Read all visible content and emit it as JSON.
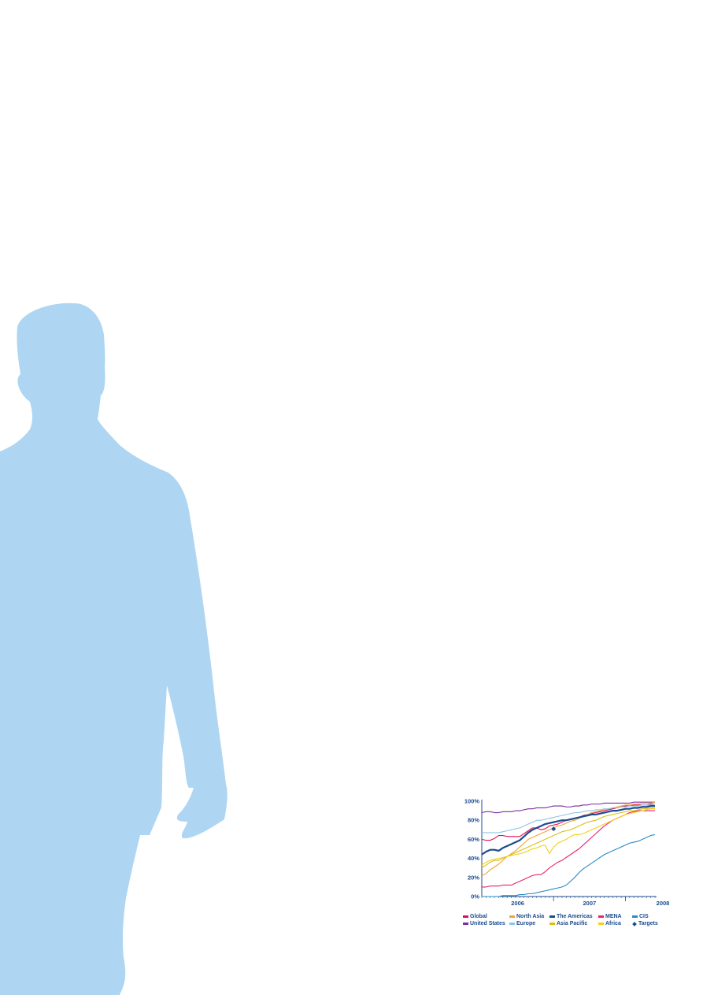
{
  "figure": {
    "silhouette_color": "#aed6f2"
  },
  "chart_data": {
    "type": "line",
    "yticks": [
      "0%",
      "20%",
      "40%",
      "60%",
      "80%",
      "100%"
    ],
    "xticks": [
      "2006",
      "2007",
      "2008"
    ],
    "ylim": [
      0,
      100
    ],
    "grid": false,
    "legend_position": "bottom",
    "x_points": 42,
    "series": [
      {
        "name": "Global",
        "color": "#e30c5b",
        "width": 1.1,
        "values": [
          60,
          59,
          59,
          61,
          64,
          64,
          63,
          63,
          63,
          63,
          66,
          69,
          72,
          72,
          70,
          71,
          74,
          75,
          76,
          78,
          80,
          81,
          82,
          83,
          85,
          86,
          87,
          88,
          89,
          90,
          91,
          92,
          93,
          94,
          95,
          95,
          96,
          96,
          96,
          96,
          97,
          97
        ]
      },
      {
        "name": "United States",
        "color": "#7b2ea0",
        "width": 1.1,
        "values": [
          88,
          89,
          89,
          88,
          88,
          89,
          89,
          89,
          90,
          90,
          91,
          92,
          92,
          93,
          93,
          93,
          94,
          95,
          95,
          95,
          94,
          94,
          95,
          95,
          96,
          96,
          97,
          97,
          97,
          98,
          98,
          98,
          98,
          98,
          98,
          98,
          99,
          99,
          99,
          99,
          99,
          99
        ]
      },
      {
        "name": "North Asia",
        "color": "#f0a33b",
        "width": 1.1,
        "values": [
          22,
          24,
          28,
          31,
          34,
          38,
          42,
          45,
          48,
          52,
          56,
          60,
          62,
          64,
          66,
          68,
          70,
          72,
          74,
          75,
          77,
          79,
          80,
          82,
          84,
          86,
          88,
          89,
          90,
          91,
          92,
          93,
          94,
          95,
          96,
          96,
          97,
          97,
          98,
          98,
          98,
          99
        ]
      },
      {
        "name": "Europe",
        "color": "#8fc4e6",
        "width": 1.1,
        "values": [
          67,
          67,
          67,
          67,
          67,
          68,
          69,
          70,
          71,
          72,
          74,
          76,
          78,
          80,
          80,
          81,
          82,
          83,
          84,
          85,
          86,
          87,
          88,
          88,
          89,
          90,
          90,
          91,
          91,
          92,
          92,
          93,
          93,
          94,
          94,
          95,
          95,
          95,
          96,
          96,
          96,
          97
        ]
      },
      {
        "name": "The Americas",
        "color": "#1a4c8f",
        "width": 2.2,
        "values": [
          44,
          47,
          49,
          49,
          48,
          51,
          53,
          55,
          57,
          59,
          63,
          67,
          70,
          72,
          74,
          76,
          77,
          78,
          79,
          80,
          80,
          81,
          82,
          83,
          84,
          85,
          86,
          86,
          87,
          88,
          89,
          90,
          90,
          91,
          92,
          92,
          93,
          93,
          94,
          94,
          95,
          95
        ]
      },
      {
        "name": "Asia Pacific",
        "color": "#d6c112",
        "width": 1.1,
        "values": [
          30,
          33,
          36,
          38,
          38,
          40,
          42,
          44,
          46,
          48,
          50,
          52,
          54,
          56,
          58,
          60,
          62,
          64,
          66,
          68,
          69,
          70,
          72,
          74,
          76,
          78,
          79,
          80,
          82,
          84,
          85,
          86,
          87,
          88,
          89,
          90,
          90,
          91,
          92,
          92,
          93,
          93
        ]
      },
      {
        "name": "MENA",
        "color": "#e8246f",
        "width": 1.1,
        "values": [
          10,
          10,
          11,
          11,
          11,
          12,
          12,
          12,
          14,
          16,
          18,
          20,
          22,
          23,
          23,
          26,
          30,
          33,
          36,
          38,
          41,
          44,
          47,
          50,
          54,
          58,
          62,
          66,
          70,
          74,
          77,
          80,
          82,
          84,
          86,
          88,
          89,
          90,
          90,
          90,
          90,
          90
        ]
      },
      {
        "name": "Africa",
        "color": "#f5cf14",
        "width": 1.1,
        "values": [
          33,
          36,
          38,
          39,
          40,
          41,
          42,
          43,
          44,
          45,
          46,
          48,
          50,
          51,
          53,
          54,
          45,
          52,
          56,
          58,
          60,
          63,
          65,
          65,
          66,
          68,
          70,
          72,
          74,
          76,
          78,
          80,
          82,
          84,
          86,
          87,
          88,
          89,
          90,
          91,
          92,
          92
        ]
      },
      {
        "name": "CIS",
        "color": "#2a8bc6",
        "width": 1.1,
        "values": [
          0,
          0,
          0,
          0,
          0,
          1,
          1,
          1,
          1,
          2,
          2,
          3,
          3,
          4,
          5,
          6,
          7,
          8,
          9,
          10,
          12,
          16,
          20,
          25,
          29,
          32,
          35,
          38,
          41,
          44,
          46,
          48,
          50,
          52,
          54,
          56,
          57,
          58,
          60,
          62,
          64,
          65
        ]
      }
    ],
    "targets": {
      "name": "Targets",
      "color": "#1a4c8f",
      "points": [
        {
          "x": 17,
          "y": 71
        },
        {
          "x": 51,
          "y": 96
        }
      ]
    }
  }
}
